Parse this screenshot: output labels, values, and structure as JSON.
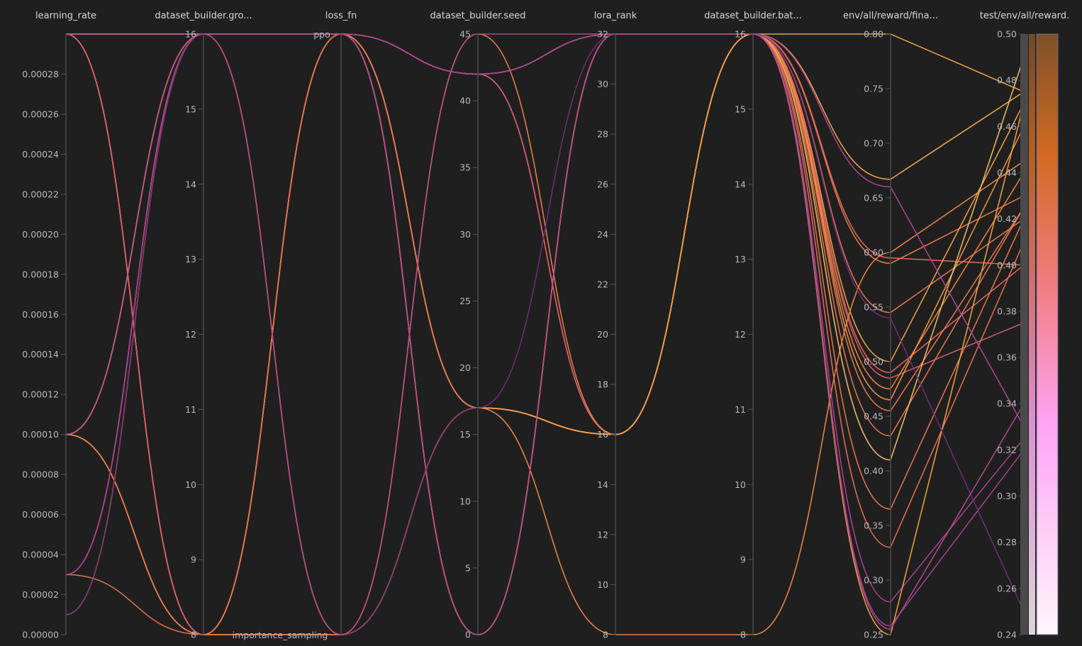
{
  "chart_data": {
    "type": "parallel_coordinates",
    "color_by": "test/env/all/reward.",
    "colorbar_range": [
      0.24,
      0.5
    ],
    "axes": [
      {
        "key": "lr",
        "label": "learning_rate",
        "kind": "num",
        "range": [
          0,
          0.0003
        ],
        "ticks": [
          0,
          2e-05,
          4e-05,
          6e-05,
          8e-05,
          0.0001,
          0.00012,
          0.00014,
          0.00016,
          0.00018,
          0.0002,
          0.00022,
          0.00024,
          0.00026,
          0.00028
        ],
        "tick_labels": [
          "0.00000",
          "0.00002",
          "0.00004",
          "0.00006",
          "0.00008",
          "0.00010",
          "0.00012",
          "0.00014",
          "0.00016",
          "0.00018",
          "0.00020",
          "0.00022",
          "0.00024",
          "0.00026",
          "0.00028"
        ]
      },
      {
        "key": "group",
        "label": "dataset_builder.gro...",
        "kind": "num",
        "range": [
          8,
          16
        ],
        "ticks": [
          8,
          9,
          10,
          11,
          12,
          13,
          14,
          15,
          16
        ],
        "tick_labels": [
          "8",
          "9",
          "10",
          "11",
          "12",
          "13",
          "14",
          "15",
          "16"
        ]
      },
      {
        "key": "loss",
        "label": "loss_fn",
        "kind": "cat",
        "categories": [
          "importance_sampling",
          "ppo"
        ]
      },
      {
        "key": "seed",
        "label": "dataset_builder.seed",
        "kind": "num",
        "range": [
          0,
          45
        ],
        "ticks": [
          0,
          5,
          10,
          15,
          20,
          25,
          30,
          35,
          40,
          45
        ],
        "tick_labels": [
          "0",
          "5",
          "10",
          "15",
          "20",
          "25",
          "30",
          "35",
          "40",
          "45"
        ]
      },
      {
        "key": "lora",
        "label": "lora_rank",
        "kind": "num",
        "range": [
          8,
          32
        ],
        "ticks": [
          8,
          10,
          12,
          14,
          16,
          18,
          20,
          22,
          24,
          26,
          28,
          30,
          32
        ],
        "tick_labels": [
          "8",
          "10",
          "12",
          "14",
          "16",
          "18",
          "20",
          "22",
          "24",
          "26",
          "28",
          "30",
          "32"
        ]
      },
      {
        "key": "batch",
        "label": "dataset_builder.bat...",
        "kind": "num",
        "range": [
          8,
          16
        ],
        "ticks": [
          8,
          9,
          10,
          11,
          12,
          13,
          14,
          15,
          16
        ],
        "tick_labels": [
          "8",
          "9",
          "10",
          "11",
          "12",
          "13",
          "14",
          "15",
          "16"
        ]
      },
      {
        "key": "env",
        "label": "env/all/reward/fina...",
        "kind": "num",
        "range": [
          0.25,
          0.8
        ],
        "ticks": [
          0.25,
          0.3,
          0.35,
          0.4,
          0.45,
          0.5,
          0.55,
          0.6,
          0.65,
          0.7,
          0.75,
          0.8
        ],
        "tick_labels": [
          "0.25",
          "0.30",
          "0.35",
          "0.40",
          "0.45",
          "0.50",
          "0.55",
          "0.60",
          "0.65",
          "0.70",
          "0.75",
          "0.80"
        ]
      },
      {
        "key": "test",
        "label": "test/env/all/reward.",
        "kind": "num",
        "range": [
          0.24,
          0.5
        ],
        "ticks": [
          0.24,
          0.26,
          0.28,
          0.3,
          0.32,
          0.34,
          0.36,
          0.38,
          0.4,
          0.42,
          0.44,
          0.46,
          0.48,
          0.5
        ],
        "tick_labels": [
          "0.24",
          "0.26",
          "0.28",
          "0.30",
          "0.32",
          "0.34",
          "0.36",
          "0.38",
          "0.40",
          "0.42",
          "0.44",
          "0.46",
          "0.48",
          "0.50"
        ]
      }
    ],
    "runs": [
      {
        "lr": 0.0003,
        "group": 16,
        "loss": "ppo",
        "seed": 42,
        "lora": 32,
        "batch": 16,
        "env": 0.8,
        "test": 0.475
      },
      {
        "lr": 0.0003,
        "group": 16,
        "loss": "ppo",
        "seed": 42,
        "lora": 32,
        "batch": 16,
        "env": 0.667,
        "test": 0.475
      },
      {
        "lr": 0.0003,
        "group": 16,
        "loss": "ppo",
        "seed": 17,
        "lora": 16,
        "batch": 16,
        "env": 0.59,
        "test": 0.43
      },
      {
        "lr": 0.0003,
        "group": 16,
        "loss": "ppo",
        "seed": 17,
        "lora": 16,
        "batch": 16,
        "env": 0.595,
        "test": 0.4
      },
      {
        "lr": 0.0003,
        "group": 8,
        "loss": "ppo",
        "seed": 0,
        "lora": 32,
        "batch": 16,
        "env": 0.545,
        "test": 0.42
      },
      {
        "lr": 0.0003,
        "group": 8,
        "loss": "ppo",
        "seed": 0,
        "lora": 32,
        "batch": 16,
        "env": 0.5,
        "test": 0.47
      },
      {
        "lr": 0.0003,
        "group": 8,
        "loss": "ppo",
        "seed": 42,
        "lora": 16,
        "batch": 16,
        "env": 0.49,
        "test": 0.4
      },
      {
        "lr": 0.0003,
        "group": 8,
        "loss": "ppo",
        "seed": 42,
        "lora": 16,
        "batch": 16,
        "env": 0.485,
        "test": 0.375
      },
      {
        "lr": 0.0001,
        "group": 16,
        "loss": "importance_sampling",
        "seed": 45,
        "lora": 16,
        "batch": 16,
        "env": 0.475,
        "test": 0.44
      },
      {
        "lr": 0.0001,
        "group": 8,
        "loss": "ppo",
        "seed": 17,
        "lora": 16,
        "batch": 16,
        "env": 0.465,
        "test": 0.46
      },
      {
        "lr": 0.0001,
        "group": 8,
        "loss": "importance_sampling",
        "seed": 17,
        "lora": 16,
        "batch": 16,
        "env": 0.455,
        "test": 0.425
      },
      {
        "lr": 0.0001,
        "group": 8,
        "loss": "importance_sampling",
        "seed": 17,
        "lora": 8,
        "batch": 8,
        "env": 0.6,
        "test": 0.445
      },
      {
        "lr": 0.0001,
        "group": 8,
        "loss": "ppo",
        "seed": 0,
        "lora": 32,
        "batch": 16,
        "env": 0.432,
        "test": 0.425
      },
      {
        "lr": 0.0001,
        "group": 16,
        "loss": "ppo",
        "seed": 17,
        "lora": 16,
        "batch": 16,
        "env": 0.41,
        "test": 0.49
      },
      {
        "lr": 3e-05,
        "group": 16,
        "loss": "ppo",
        "seed": 0,
        "lora": 32,
        "batch": 16,
        "env": 0.365,
        "test": 0.42
      },
      {
        "lr": 3e-05,
        "group": 8,
        "loss": "ppo",
        "seed": 17,
        "lora": 16,
        "batch": 16,
        "env": 0.33,
        "test": 0.41
      },
      {
        "lr": 3e-05,
        "group": 16,
        "loss": "ppo",
        "seed": 42,
        "lora": 32,
        "batch": 16,
        "env": 0.28,
        "test": 0.325
      },
      {
        "lr": 3e-05,
        "group": 16,
        "loss": "ppo",
        "seed": 42,
        "lora": 32,
        "batch": 16,
        "env": 0.258,
        "test": 0.32
      },
      {
        "lr": 1e-05,
        "group": 16,
        "loss": "importance_sampling",
        "seed": 17,
        "lora": 16,
        "batch": 16,
        "env": 0.25,
        "test": 0.47
      },
      {
        "lr": 0.0003,
        "group": 16,
        "loss": "ppo",
        "seed": 0,
        "lora": 32,
        "batch": 16,
        "env": 0.66,
        "test": 0.33
      },
      {
        "lr": 1e-05,
        "group": 16,
        "loss": "importance_sampling",
        "seed": 17,
        "lora": 32,
        "batch": 16,
        "env": 0.54,
        "test": 0.25
      },
      {
        "lr": 0.0001,
        "group": 16,
        "loss": "importance_sampling",
        "seed": 45,
        "lora": 32,
        "batch": 16,
        "env": 0.255,
        "test": 0.34
      }
    ]
  }
}
